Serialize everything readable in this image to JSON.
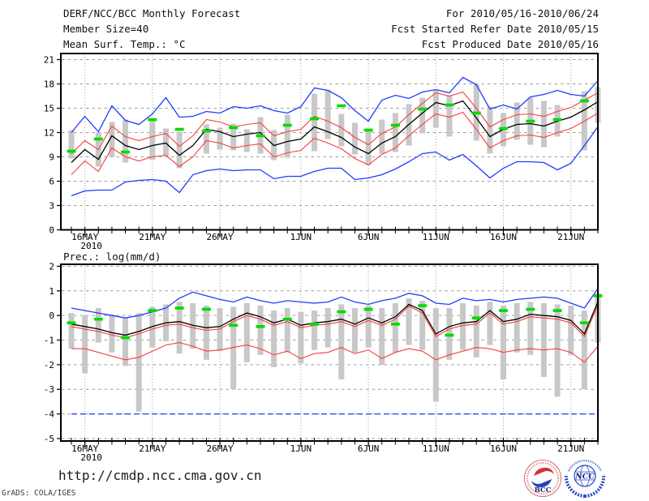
{
  "header": {
    "title": "DERF/NCC/BCC Monthly Forecast",
    "member_size": "Member Size=40",
    "valid_range": "For 2010/05/16-2010/06/24",
    "refer_date": "Fcst Started Refer Date 2010/05/15",
    "produced_date": "Fcst Produced Date 2010/05/16"
  },
  "footer": {
    "url": "http://cmdp.ncc.cma.gov.cn",
    "credit": "GrADS: COLA/IGES",
    "bcc_logo_text": "BCC",
    "ncc_logo_text": "NCC"
  },
  "colors": {
    "blue": "#1E3CFF",
    "red": "#FA3C3C",
    "green": "#00DC00",
    "black": "#000000",
    "bar_gray": "#C8C8C8",
    "grid_gray": "#9e9e9e"
  },
  "chart_data": [
    {
      "type": "line",
      "name": "surface-temperature",
      "title": "Mean Surf. Temp.: °C",
      "ylabel": "°C",
      "n_points": 40,
      "ylim": [
        0,
        21.75
      ],
      "yticks": [
        21,
        18,
        15,
        12,
        9,
        6,
        3,
        0
      ],
      "grid": true,
      "legend": "none",
      "x_ticks": [
        {
          "day": 1,
          "label": "16MAY",
          "sublabel": "2010"
        },
        {
          "day": 6,
          "label": "21MAY"
        },
        {
          "day": 11,
          "label": "26MAY"
        },
        {
          "day": 17,
          "label": "1JUN"
        },
        {
          "day": 22,
          "label": "6JUN"
        },
        {
          "day": 27,
          "label": "11JUN"
        },
        {
          "day": 32,
          "label": "16JUN"
        },
        {
          "day": 37,
          "label": "21JUN"
        }
      ],
      "series": [
        {
          "name": "ensemble-max",
          "color": "#1E3CFF",
          "values": [
            12.0,
            14.0,
            12.1,
            15.3,
            13.5,
            13.0,
            14.3,
            16.3,
            13.9,
            14.0,
            14.6,
            14.4,
            15.2,
            15.0,
            15.3,
            14.7,
            14.4,
            15.2,
            17.5,
            17.2,
            16.3,
            14.7,
            13.4,
            16.0,
            16.6,
            16.2,
            17.0,
            17.3,
            16.9,
            18.8,
            17.9,
            14.9,
            15.4,
            14.9,
            16.4,
            16.7,
            17.2,
            16.7,
            16.5,
            18.4
          ]
        },
        {
          "name": "upper-quartile",
          "color": "#FA3C3C",
          "values": [
            9.4,
            11.0,
            9.9,
            12.8,
            11.5,
            11.0,
            11.5,
            11.9,
            10.3,
            11.6,
            13.6,
            13.3,
            12.7,
            13.0,
            13.2,
            11.6,
            12.1,
            12.4,
            14.0,
            13.4,
            12.6,
            11.4,
            10.5,
            11.9,
            12.7,
            14.2,
            15.6,
            16.9,
            16.5,
            17.0,
            15.0,
            12.7,
            13.6,
            14.2,
            14.3,
            14.0,
            14.6,
            15.1,
            16.0,
            16.9
          ]
        },
        {
          "name": "ensemble-mean",
          "color": "#000000",
          "values": [
            8.3,
            9.9,
            8.7,
            11.6,
            10.4,
            9.9,
            10.4,
            10.7,
            9.2,
            10.4,
            12.4,
            12.1,
            11.5,
            11.8,
            12.0,
            10.4,
            10.9,
            11.2,
            12.7,
            12.1,
            11.4,
            10.2,
            9.4,
            10.7,
            11.5,
            13.0,
            14.4,
            15.7,
            15.3,
            15.9,
            13.8,
            11.5,
            12.4,
            13.0,
            13.1,
            12.8,
            13.4,
            13.9,
            14.8,
            15.8
          ]
        },
        {
          "name": "lower-quartile",
          "color": "#FA3C3C",
          "values": [
            6.8,
            8.5,
            7.2,
            10.1,
            9.0,
            8.5,
            9.0,
            9.2,
            7.8,
            9.0,
            11.0,
            10.7,
            10.1,
            10.4,
            10.6,
            9.0,
            9.5,
            9.8,
            11.3,
            10.7,
            10.0,
            8.8,
            8.0,
            9.3,
            10.1,
            11.6,
            13.0,
            14.3,
            13.9,
            14.5,
            12.4,
            10.1,
            11.0,
            11.6,
            11.7,
            11.4,
            12.0,
            12.5,
            13.4,
            14.4
          ]
        },
        {
          "name": "ensemble-min",
          "color": "#1E3CFF",
          "values": [
            4.2,
            4.8,
            4.9,
            4.9,
            5.9,
            6.1,
            6.2,
            6.0,
            4.6,
            6.8,
            7.3,
            7.5,
            7.3,
            7.4,
            7.4,
            6.3,
            6.6,
            6.6,
            7.2,
            7.6,
            7.6,
            6.2,
            6.4,
            6.8,
            7.5,
            8.4,
            9.4,
            9.6,
            8.6,
            9.3,
            7.9,
            6.4,
            7.6,
            8.4,
            8.4,
            8.3,
            7.4,
            8.2,
            10.4,
            12.7
          ]
        }
      ],
      "observation": {
        "name": "observation",
        "color": "#00DC00",
        "values": [
          9.7,
          null,
          11.2,
          null,
          9.6,
          null,
          13.6,
          null,
          12.4,
          null,
          12.2,
          null,
          12.6,
          null,
          11.6,
          null,
          12.9,
          null,
          13.7,
          null,
          15.3,
          null,
          12.3,
          null,
          12.9,
          null,
          14.9,
          null,
          15.4,
          null,
          14.4,
          null,
          12.5,
          null,
          13.4,
          null,
          13.6,
          null,
          15.9,
          null
        ]
      },
      "spread_bars": {
        "color": "#C8C8C8",
        "low": [
          8.8,
          null,
          7.8,
          9.0,
          8.3,
          null,
          8.6,
          9.1,
          7.6,
          null,
          9.4,
          9.9,
          9.8,
          9.6,
          9.4,
          8.6,
          8.9,
          null,
          9.7,
          11.2,
          10.3,
          9.3,
          8.0,
          9.4,
          9.6,
          10.4,
          11.9,
          12.6,
          11.5,
          null,
          11.0,
          9.4,
          10.3,
          11.1,
          10.5,
          10.2,
          11.5,
          null,
          9.8,
          13.2
        ],
        "high": [
          12.3,
          null,
          12.0,
          13.3,
          13.6,
          null,
          13.8,
          12.5,
          12.1,
          null,
          13.0,
          12.6,
          13.1,
          12.4,
          13.9,
          12.3,
          14.2,
          null,
          16.8,
          17.3,
          14.3,
          13.2,
          12.5,
          13.6,
          14.4,
          15.5,
          16.3,
          17.3,
          16.6,
          null,
          17.9,
          15.2,
          14.4,
          15.7,
          16.3,
          15.9,
          15.4,
          null,
          17.1,
          17.6
        ]
      }
    },
    {
      "type": "line",
      "name": "precipitation",
      "title": "Prec.: log(mm/d)",
      "ylabel": "log(mm/d)",
      "n_points": 40,
      "ylim": [
        -5.1,
        2.08
      ],
      "yticks": [
        2,
        1,
        0,
        -1,
        -2,
        -3,
        -4,
        -5
      ],
      "grid": true,
      "legend": "none",
      "x_ticks": [
        {
          "day": 1,
          "label": "16MAY",
          "sublabel": "2010"
        },
        {
          "day": 6,
          "label": "21MAY"
        },
        {
          "day": 11,
          "label": "26MAY"
        },
        {
          "day": 17,
          "label": "1JUN"
        },
        {
          "day": 22,
          "label": "6JUN"
        },
        {
          "day": 27,
          "label": "11JUN"
        },
        {
          "day": 32,
          "label": "16JUN"
        },
        {
          "day": 37,
          "label": "21JUN"
        }
      ],
      "series": [
        {
          "name": "ensemble-max",
          "color": "#1E3CFF",
          "values": [
            0.3,
            0.2,
            0.1,
            0.0,
            -0.1,
            0.0,
            0.15,
            0.3,
            0.7,
            0.95,
            0.8,
            0.65,
            0.55,
            0.75,
            0.6,
            0.5,
            0.6,
            0.55,
            0.5,
            0.55,
            0.75,
            0.55,
            0.45,
            0.6,
            0.7,
            0.9,
            0.8,
            0.5,
            0.45,
            0.7,
            0.6,
            0.65,
            0.55,
            0.65,
            0.7,
            0.75,
            0.7,
            0.5,
            0.3,
            1.1
          ]
        },
        {
          "name": "upper-quartile",
          "color": "#FA3C3C",
          "values": [
            -0.45,
            -0.55,
            -0.65,
            -0.8,
            -0.9,
            -0.75,
            -0.55,
            -0.4,
            -0.35,
            -0.5,
            -0.6,
            -0.55,
            -0.25,
            0.0,
            -0.15,
            -0.4,
            -0.25,
            -0.5,
            -0.4,
            -0.35,
            -0.25,
            -0.45,
            -0.2,
            -0.4,
            -0.15,
            0.38,
            0.1,
            -0.85,
            -0.55,
            -0.4,
            -0.35,
            0.1,
            -0.35,
            -0.25,
            -0.05,
            -0.1,
            -0.15,
            -0.3,
            -0.85,
            0.42
          ]
        },
        {
          "name": "ensemble-mean",
          "color": "#000000",
          "values": [
            -0.35,
            -0.45,
            -0.55,
            -0.7,
            -0.8,
            -0.65,
            -0.45,
            -0.3,
            -0.25,
            -0.4,
            -0.5,
            -0.45,
            -0.15,
            0.1,
            -0.05,
            -0.3,
            -0.15,
            -0.4,
            -0.3,
            -0.25,
            -0.15,
            -0.35,
            -0.1,
            -0.3,
            -0.05,
            0.45,
            0.2,
            -0.75,
            -0.45,
            -0.3,
            -0.25,
            0.2,
            -0.25,
            -0.15,
            0.05,
            0.0,
            -0.05,
            -0.2,
            -0.75,
            0.55
          ]
        },
        {
          "name": "lower-quartile",
          "color": "#FA3C3C",
          "values": [
            -1.35,
            -1.35,
            -1.5,
            -1.65,
            -1.8,
            -1.7,
            -1.45,
            -1.2,
            -1.1,
            -1.25,
            -1.45,
            -1.4,
            -1.3,
            -1.2,
            -1.35,
            -1.6,
            -1.45,
            -1.75,
            -1.55,
            -1.5,
            -1.3,
            -1.55,
            -1.4,
            -1.75,
            -1.5,
            -1.35,
            -1.45,
            -1.8,
            -1.6,
            -1.45,
            -1.3,
            -1.35,
            -1.5,
            -1.4,
            -1.35,
            -1.4,
            -1.35,
            -1.5,
            -1.9,
            -1.25
          ]
        },
        {
          "name": "ensemble-min",
          "color": "#1E3CFF",
          "style": "dashed",
          "values": [
            -4,
            -4,
            -4,
            -4,
            -4,
            -4,
            -4,
            -4,
            -4,
            -4,
            -4,
            -4,
            -4,
            -4,
            -4,
            -4,
            -4,
            -4,
            -4,
            -4,
            -4,
            -4,
            -4,
            -4,
            -4,
            -4,
            -4,
            -4,
            -4,
            -4,
            -4,
            -4,
            -4,
            -4,
            -4,
            -4,
            -4,
            -4,
            -4,
            -4
          ]
        }
      ],
      "observation": {
        "name": "observation",
        "color": "#00DC00",
        "values": [
          -0.3,
          null,
          -0.15,
          null,
          -0.9,
          null,
          0.2,
          null,
          0.3,
          null,
          0.25,
          null,
          -0.4,
          null,
          -0.45,
          null,
          -0.15,
          null,
          -0.35,
          null,
          0.15,
          null,
          0.25,
          null,
          -0.35,
          null,
          0.4,
          null,
          -0.8,
          null,
          -0.1,
          null,
          0.2,
          null,
          0.25,
          null,
          0.2,
          null,
          -0.3,
          0.8
        ]
      },
      "spread_bars": {
        "color": "#C8C8C8",
        "low": [
          -1.35,
          -2.35,
          -1.1,
          -1.5,
          -2.05,
          -3.9,
          -1.3,
          -1.05,
          -1.55,
          -1.35,
          -1.8,
          -1.45,
          -3.0,
          -1.9,
          -1.6,
          -2.1,
          -1.5,
          -1.95,
          -1.4,
          -1.3,
          -2.6,
          -1.5,
          -1.3,
          -2.0,
          -1.5,
          -1.2,
          -1.4,
          -3.5,
          -1.8,
          -1.4,
          -1.7,
          -1.2,
          -2.6,
          -1.5,
          -1.6,
          -2.5,
          -3.3,
          -1.6,
          -3.0,
          -1.1
        ],
        "high": [
          0.1,
          0.0,
          0.3,
          0.05,
          -0.1,
          0.1,
          0.35,
          0.45,
          0.55,
          0.5,
          0.4,
          0.3,
          0.35,
          0.5,
          0.4,
          0.2,
          0.3,
          0.15,
          0.2,
          0.3,
          0.45,
          0.3,
          0.4,
          0.3,
          0.5,
          0.7,
          0.6,
          0.3,
          0.3,
          0.5,
          0.4,
          0.55,
          0.4,
          0.5,
          0.55,
          0.5,
          0.45,
          0.4,
          0.2,
          0.9
        ]
      }
    }
  ]
}
